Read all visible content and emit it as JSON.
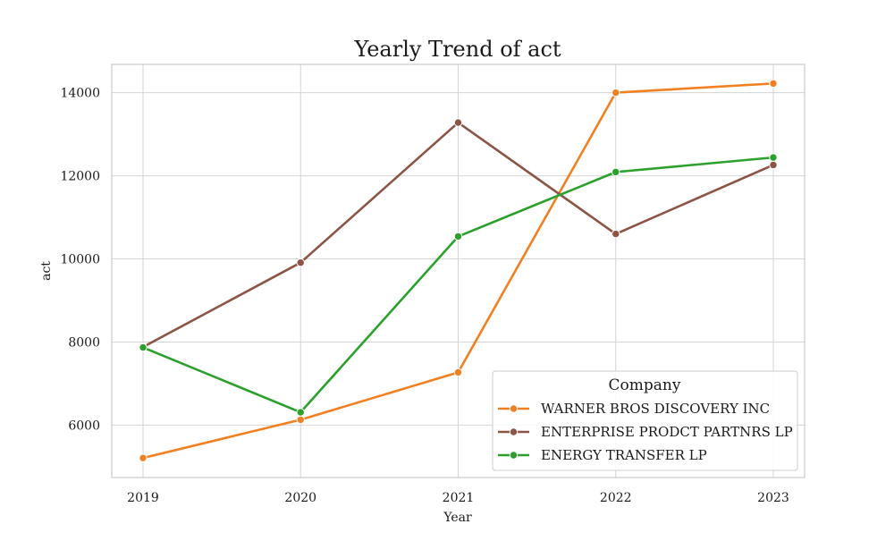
{
  "chart_data": {
    "type": "line",
    "title": "Yearly Trend of act",
    "xlabel": "Year",
    "ylabel": "act",
    "categories": [
      "2019",
      "2020",
      "2021",
      "2022",
      "2023"
    ],
    "yticks": [
      "6000",
      "8000",
      "10000",
      "12000",
      "14000"
    ],
    "ylim": [
      4740,
      14680
    ],
    "grid": true,
    "legend": {
      "title": "Company",
      "placement": "lower-right"
    },
    "series": [
      {
        "name": "WARNER BROS DISCOVERY INC",
        "color": "#f28021",
        "values": [
          5210,
          6130,
          7270,
          14000,
          14220
        ]
      },
      {
        "name": "ENTERPRISE PRODCT PARTNRS LP",
        "color": "#8b5444",
        "values": [
          7880,
          9910,
          13280,
          10600,
          12260
        ]
      },
      {
        "name": "ENERGY TRANSFER LP",
        "color": "#2ca02c",
        "values": [
          7870,
          6310,
          10540,
          12090,
          12440
        ]
      }
    ]
  }
}
